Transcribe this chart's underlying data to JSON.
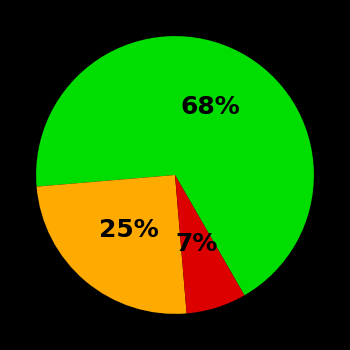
{
  "slices": [
    68,
    25,
    7
  ],
  "colors": [
    "#00dd00",
    "#ffaa00",
    "#dd0000"
  ],
  "labels": [
    "68%",
    "25%",
    "7%"
  ],
  "background_color": "#000000",
  "startangle": -60,
  "label_fontsize": 18,
  "label_fontweight": "bold",
  "label_radii": [
    0.55,
    0.52,
    0.52
  ]
}
